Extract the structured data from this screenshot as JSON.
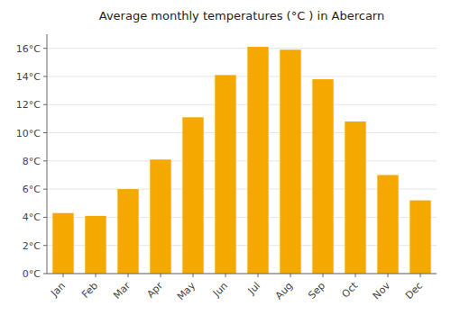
{
  "chart_data": {
    "type": "bar",
    "title": "Average monthly temperatures (°C ) in Abercarn",
    "categories": [
      "Jan",
      "Feb",
      "Mar",
      "Apr",
      "May",
      "Jun",
      "Jul",
      "Aug",
      "Sep",
      "Oct",
      "Nov",
      "Dec"
    ],
    "values": [
      4.3,
      4.1,
      6.0,
      8.1,
      11.1,
      14.1,
      16.1,
      15.9,
      13.8,
      10.8,
      7.0,
      5.2
    ],
    "color": "#F5A800",
    "ylim": [
      0,
      17
    ],
    "yticks": [
      {
        "value": 0,
        "label": "0°C"
      },
      {
        "value": 2,
        "label": "2°C"
      },
      {
        "value": 4,
        "label": "4°C"
      },
      {
        "value": 6,
        "label": "6°C"
      },
      {
        "value": 8,
        "label": "8°C"
      },
      {
        "value": 10,
        "label": "10°C"
      },
      {
        "value": 12,
        "label": "12°C"
      },
      {
        "value": 14,
        "label": "14°C"
      },
      {
        "value": 16,
        "label": "16°C"
      }
    ],
    "grid": true
  }
}
